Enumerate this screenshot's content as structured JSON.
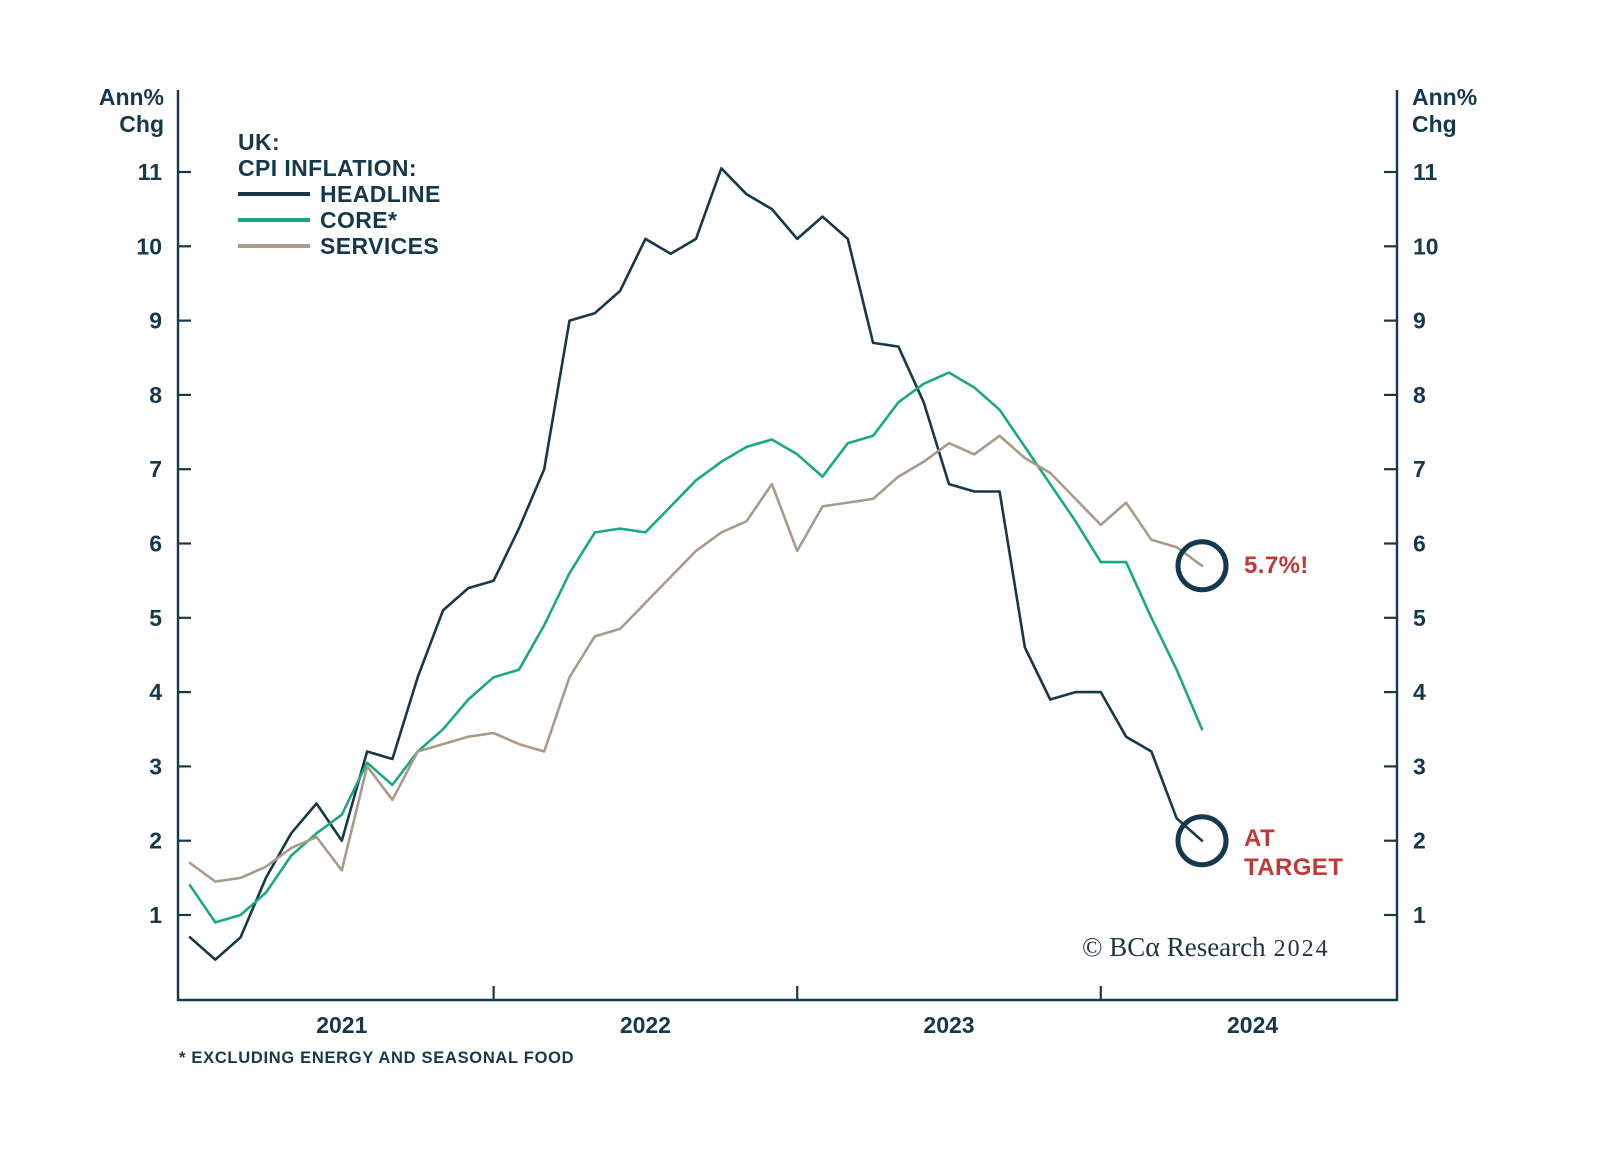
{
  "chart_data": {
    "type": "line",
    "title": "UK: CPI INFLATION",
    "legend": {
      "line1": "UK:",
      "line2": "CPI INFLATION:"
    },
    "x_frequency": "monthly",
    "x_start": "2021-01",
    "x_end": "2024-05",
    "xticks_years": [
      "2021",
      "2022",
      "2023",
      "2024"
    ],
    "yticks": [
      1,
      2,
      3,
      4,
      5,
      6,
      7,
      8,
      9,
      10,
      11
    ],
    "ylabel_left": "Ann% Chg",
    "ylabel_right": "Ann% Chg",
    "grid": false,
    "series": [
      {
        "name": "HEADLINE",
        "color": "#16384c",
        "values": [
          0.7,
          0.4,
          0.7,
          1.5,
          2.1,
          2.5,
          2.0,
          3.2,
          3.1,
          4.2,
          5.1,
          5.4,
          5.5,
          6.2,
          7.0,
          9.0,
          9.1,
          9.4,
          10.1,
          9.9,
          10.1,
          11.05,
          10.7,
          10.5,
          10.1,
          10.4,
          10.1,
          8.7,
          8.65,
          7.9,
          6.8,
          6.7,
          6.7,
          4.6,
          3.9,
          4.0,
          4.0,
          3.4,
          3.2,
          2.3,
          2.0
        ]
      },
      {
        "name": "CORE*",
        "color": "#1ca884",
        "values": [
          1.4,
          0.9,
          1.0,
          1.3,
          1.8,
          2.1,
          2.35,
          3.05,
          2.75,
          3.2,
          3.5,
          3.9,
          4.2,
          4.3,
          4.9,
          5.6,
          6.15,
          6.2,
          6.15,
          6.5,
          6.85,
          7.1,
          7.3,
          7.4,
          7.2,
          6.9,
          7.35,
          7.45,
          7.9,
          8.15,
          8.3,
          8.1,
          7.8,
          7.3,
          6.8,
          6.3,
          5.75,
          5.75,
          5.0,
          4.3,
          3.5
        ]
      },
      {
        "name": "SERVICES",
        "color": "#a99b8a",
        "values": [
          1.7,
          1.45,
          1.5,
          1.65,
          1.9,
          2.05,
          1.6,
          3.0,
          2.55,
          3.2,
          3.3,
          3.4,
          3.45,
          3.3,
          3.2,
          4.2,
          4.75,
          4.85,
          5.2,
          5.55,
          5.9,
          6.15,
          6.3,
          6.8,
          5.9,
          6.5,
          6.55,
          6.6,
          6.9,
          7.1,
          7.35,
          7.2,
          7.45,
          7.15,
          6.95,
          6.6,
          6.25,
          6.55,
          6.05,
          5.95,
          5.7
        ]
      }
    ],
    "annotations": [
      {
        "text": "5.7%!",
        "series_index": 2,
        "color": "#bf3a36"
      },
      {
        "text": "AT TARGET",
        "series_index": 0,
        "color": "#bf3a36"
      }
    ]
  },
  "labels": {
    "unit_top_left": [
      "Ann%",
      "Chg"
    ],
    "unit_top_right": [
      "Ann%",
      "Chg"
    ],
    "footnote": "* EXCLUDING ENERGY AND SEASONAL FOOD",
    "copyright": {
      "prefix": "© BC",
      "alpha": "α",
      "suffix": " Research",
      "year": "2024"
    }
  }
}
